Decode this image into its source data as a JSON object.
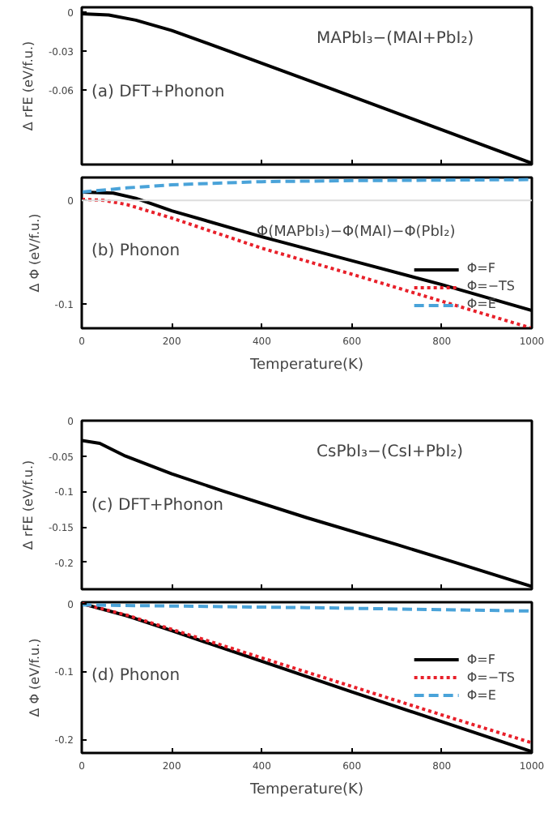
{
  "chart_data": [
    {
      "type": "line",
      "ylabel": "Δ rFE (eV/f.u.)",
      "annotations": [
        "MAPbI₃−(MAI+PbI₂)",
        "(a) DFT+Phonon"
      ],
      "xlim": [
        0,
        1000
      ],
      "xticks": [
        0,
        200,
        400,
        600,
        800,
        1000
      ],
      "ylim": [
        -0.118,
        0.004
      ],
      "yticks": [
        0,
        -0.03,
        -0.06
      ],
      "tick_labels": "y",
      "grid": false,
      "legend": false,
      "series": [
        {
          "color": "#000000",
          "line_style": "solid",
          "x": [
            0,
            60,
            120,
            200,
            327,
            561,
            800,
            1000
          ],
          "values": [
            -0.001,
            -0.002,
            -0.006,
            -0.014,
            -0.03,
            -0.06,
            -0.091,
            -0.117
          ]
        }
      ]
    },
    {
      "type": "line",
      "ylabel": "Δ Φ (eV/f.u.)",
      "xlabel": "Temperature(K)",
      "annotations": [
        "Φ(MAPbI₃)−Φ(MAI)−Φ(PbI₂)",
        "(b) Phonon"
      ],
      "xlim": [
        0,
        1000
      ],
      "xticks": [
        0,
        200,
        400,
        600,
        800,
        1000
      ],
      "ylim": [
        -0.123,
        0.022
      ],
      "yticks": [
        0,
        -0.1
      ],
      "grid": false,
      "legend": "bottom right",
      "ref_lines": [
        {
          "axis": "y",
          "value": 0,
          "color": "#dddddd"
        }
      ],
      "series": [
        {
          "name": "Φ=F",
          "color": "#000000",
          "line_style": "solid",
          "x": [
            0,
            70,
            120,
            200,
            400,
            600,
            800,
            1000
          ],
          "values": [
            0.008,
            0.007,
            0.002,
            -0.01,
            -0.035,
            -0.058,
            -0.081,
            -0.106
          ]
        },
        {
          "name": "Φ=−TS",
          "color": "#e8202a",
          "line_style": "dotted",
          "x": [
            0,
            50,
            100,
            200,
            400,
            600,
            800,
            1000
          ],
          "values": [
            0.001,
            0.0,
            -0.004,
            -0.017,
            -0.046,
            -0.071,
            -0.097,
            -0.123
          ]
        },
        {
          "name": "Φ=E",
          "color": "#4aa3d9",
          "line_style": "dashed",
          "x": [
            0,
            100,
            200,
            400,
            600,
            1000
          ],
          "values": [
            0.008,
            0.012,
            0.015,
            0.018,
            0.019,
            0.02
          ]
        }
      ]
    },
    {
      "type": "line",
      "ylabel": "Δ rFE (eV/f.u.)",
      "annotations": [
        "CsPbI₃−(CsI+PbI₂)",
        "(c) DFT+Phonon"
      ],
      "xlim": [
        0,
        1000
      ],
      "xticks": [
        0,
        200,
        400,
        600,
        800,
        1000
      ],
      "ylim": [
        -0.238,
        0
      ],
      "yticks": [
        0,
        -0.05,
        -0.1,
        -0.15,
        -0.2
      ],
      "tick_labels": "y",
      "grid": false,
      "legend": false,
      "series": [
        {
          "color": "#000000",
          "line_style": "solid",
          "x": [
            0,
            40,
            97,
            200,
            317,
            500,
            700,
            829,
            1000
          ],
          "values": [
            -0.028,
            -0.032,
            -0.05,
            -0.075,
            -0.1,
            -0.137,
            -0.175,
            -0.2,
            -0.234
          ]
        }
      ]
    },
    {
      "type": "line",
      "ylabel": "Δ Φ (eV/f.u.)",
      "xlabel": "Temperature(K)",
      "annotations": [
        "(d) Phonon"
      ],
      "xlim": [
        0,
        1000
      ],
      "xticks": [
        0,
        200,
        400,
        600,
        800,
        1000
      ],
      "ylim": [
        -0.22,
        0.002
      ],
      "yticks": [
        0,
        -0.1,
        -0.2
      ],
      "grid": false,
      "legend": "right",
      "series": [
        {
          "name": "Φ=F",
          "color": "#000000",
          "line_style": "solid",
          "x": [
            0,
            100,
            200,
            400,
            600,
            800,
            1000
          ],
          "values": [
            0.0,
            -0.018,
            -0.04,
            -0.085,
            -0.13,
            -0.174,
            -0.218
          ]
        },
        {
          "name": "Φ=−TS",
          "color": "#e8202a",
          "line_style": "dotted",
          "x": [
            0,
            100,
            200,
            400,
            600,
            800,
            1000
          ],
          "values": [
            0.0,
            -0.017,
            -0.038,
            -0.08,
            -0.122,
            -0.164,
            -0.205
          ]
        },
        {
          "name": "Φ=E",
          "color": "#4aa3d9",
          "line_style": "dashed",
          "x": [
            0,
            500,
            1000
          ],
          "values": [
            -0.002,
            -0.006,
            -0.011
          ]
        }
      ]
    }
  ]
}
